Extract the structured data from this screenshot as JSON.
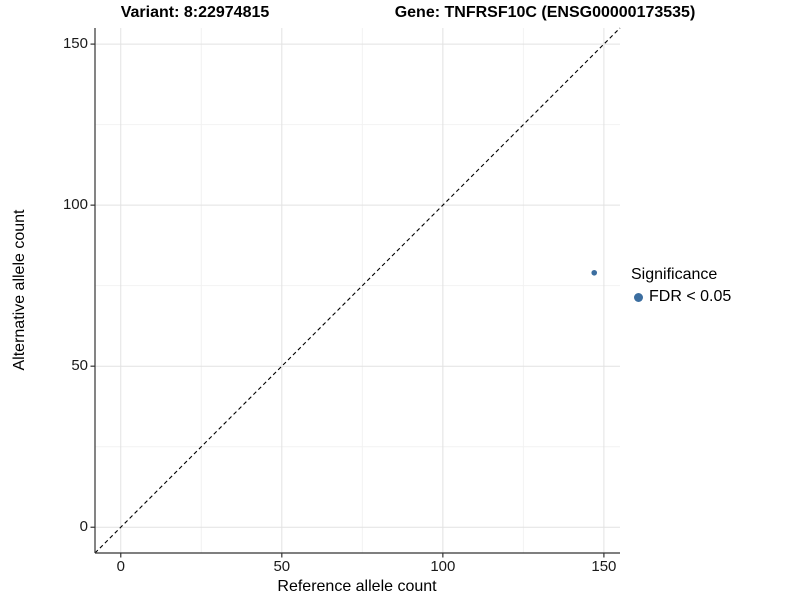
{
  "page": {
    "background": "#ffffff"
  },
  "chart_data": {
    "type": "scatter",
    "titles": {
      "left": "Variant: 8:22974815",
      "right": "Gene: TNFRSF10C (ENSG00000173535)"
    },
    "xlabel": "Reference allele count",
    "ylabel": "Alternative allele count",
    "xlim": [
      -8,
      155
    ],
    "ylim": [
      -8,
      155
    ],
    "x_major_ticks": [
      0,
      50,
      100,
      150
    ],
    "y_major_ticks": [
      0,
      50,
      100,
      150
    ],
    "x_minor_ticks": [
      25,
      75,
      125
    ],
    "y_minor_ticks": [
      25,
      75,
      125
    ],
    "grid": {
      "on": true,
      "major_color": "#e2e2e2",
      "minor_color": "#f2f2f2"
    },
    "identity_line": {
      "from": [
        -8,
        -8
      ],
      "to": [
        155,
        155
      ],
      "style": "dashed",
      "color": "#000000"
    },
    "series": [
      {
        "name": "FDR < 0.05",
        "color": "#3c6ea0",
        "points": [
          {
            "x": 147,
            "y": 79
          }
        ],
        "point_radius": 2.8
      }
    ],
    "legend": {
      "title": "Significance",
      "position": "right",
      "entries": [
        {
          "label": "FDR < 0.05",
          "color": "#3c6ea0"
        }
      ]
    },
    "axis_color": "#333333",
    "tick_label_color": "#1a1a1a"
  }
}
